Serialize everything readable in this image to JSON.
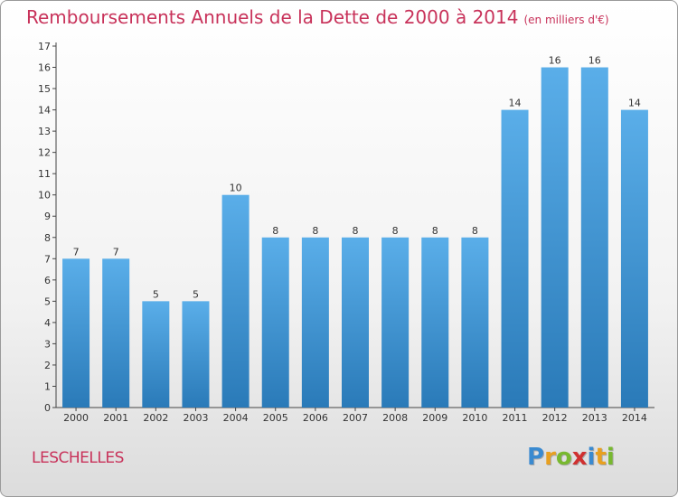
{
  "chart_data": {
    "type": "bar",
    "title": "Remboursements Annuels de la Dette de 2000 à 2014",
    "subtitle": "(en milliers d'€)",
    "categories": [
      "2000",
      "2001",
      "2002",
      "2003",
      "2004",
      "2005",
      "2006",
      "2007",
      "2008",
      "2009",
      "2010",
      "2011",
      "2012",
      "2013",
      "2014"
    ],
    "values": [
      7,
      7,
      5,
      5,
      10,
      8,
      8,
      8,
      8,
      8,
      8,
      14,
      16,
      16,
      14
    ],
    "ylim": [
      0,
      17
    ],
    "yticks": [
      "0",
      "1",
      "2",
      "3",
      "4",
      "5",
      "6",
      "7",
      "8",
      "9",
      "10",
      "11",
      "12",
      "13",
      "14",
      "15",
      "16",
      "17"
    ],
    "grid": false,
    "bar_color_top": "#5aaee9",
    "bar_color_bottom": "#2a7ab8"
  },
  "commune": "LESCHELLES",
  "logo": {
    "letters": [
      "P",
      "r",
      "o",
      "x",
      "i",
      "t",
      "i"
    ],
    "colors": [
      "#3a8ad0",
      "#e8a020",
      "#78b830",
      "#d03030",
      "#3a8ad0",
      "#e8a020",
      "#78b830"
    ]
  }
}
